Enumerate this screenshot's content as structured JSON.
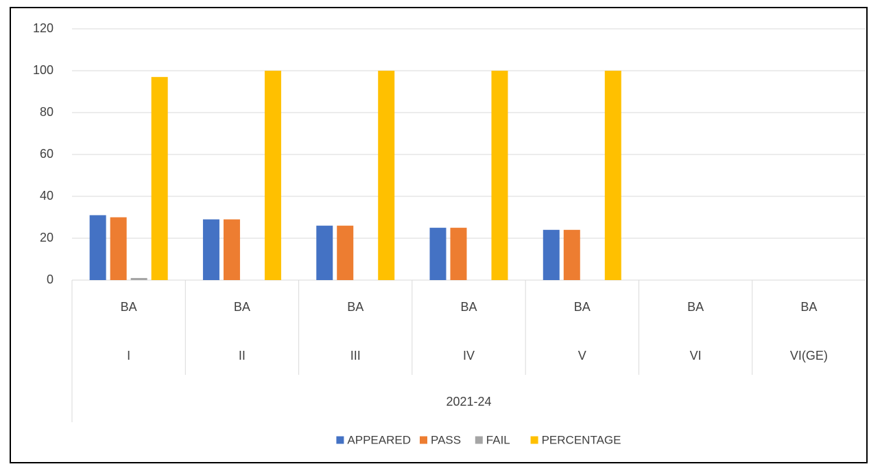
{
  "chart_data": {
    "type": "bar",
    "categories": [
      {
        "level3": "2021-24",
        "level2": "BA",
        "level1": "I"
      },
      {
        "level3": "2021-24",
        "level2": "BA",
        "level1": "II"
      },
      {
        "level3": "2021-24",
        "level2": "BA",
        "level1": "III"
      },
      {
        "level3": "2021-24",
        "level2": "BA",
        "level1": "IV"
      },
      {
        "level3": "2021-24",
        "level2": "BA",
        "level1": "V"
      },
      {
        "level3": "2021-24",
        "level2": "BA",
        "level1": "VI"
      },
      {
        "level3": "2021-24",
        "level2": "BA",
        "level1": "VI(GE)"
      }
    ],
    "group_label": "2021-24",
    "series": [
      {
        "name": "APPEARED",
        "color": "#4472C4",
        "values": [
          31,
          29,
          26,
          25,
          24,
          0,
          0
        ]
      },
      {
        "name": "PASS",
        "color": "#ED7D31",
        "values": [
          30,
          29,
          26,
          25,
          24,
          0,
          0
        ]
      },
      {
        "name": "FAIL",
        "color": "#A5A5A5",
        "values": [
          1,
          0,
          0,
          0,
          0,
          0,
          0
        ]
      },
      {
        "name": "PERCENTAGE",
        "color": "#FFC000",
        "values": [
          97,
          100,
          100,
          100,
          100,
          0,
          0
        ]
      }
    ],
    "ylim": [
      0,
      120
    ],
    "yticks": [
      0,
      20,
      40,
      60,
      80,
      100,
      120
    ],
    "grid": true,
    "legend_position": "bottom"
  }
}
